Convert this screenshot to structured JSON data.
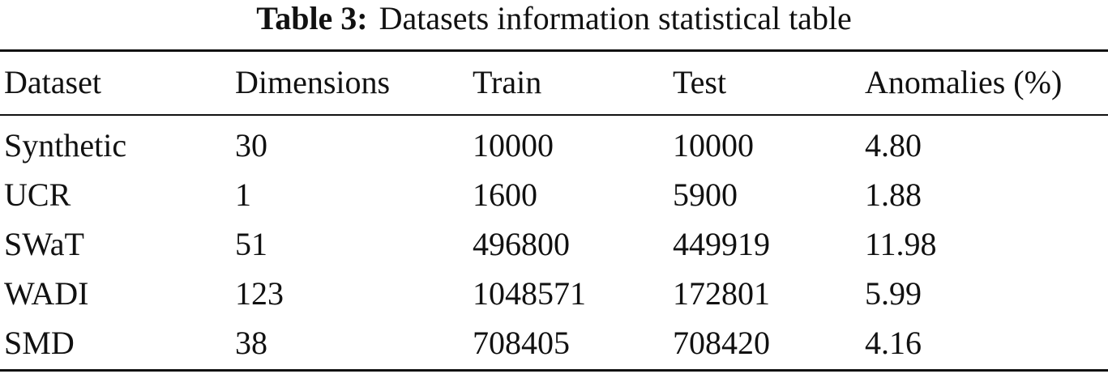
{
  "caption": {
    "label": "Table 3:",
    "text": "Datasets information statistical table"
  },
  "table": {
    "header": [
      "Dataset",
      "Dimensions",
      "Train",
      "Test",
      "Anomalies (%)"
    ],
    "rows": [
      [
        "Synthetic",
        "30",
        "10000",
        "10000",
        "4.80"
      ],
      [
        "UCR",
        "1",
        "1600",
        "5900",
        "1.88"
      ],
      [
        "SWaT",
        "51",
        "496800",
        "449919",
        "11.98"
      ],
      [
        "WADI",
        "123",
        "1048571",
        "172801",
        "5.99"
      ],
      [
        "SMD",
        "38",
        "708405",
        "708420",
        "4.16"
      ]
    ]
  }
}
